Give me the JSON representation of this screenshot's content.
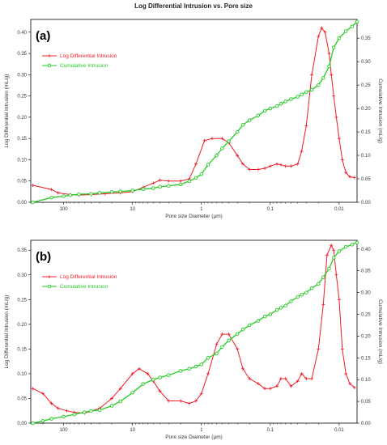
{
  "figure": {
    "title": "Log Differential Intrusion vs. Pore size"
  },
  "colors": {
    "log_differential": "#ee1c25",
    "cumulative": "#22cc22"
  },
  "chart_data": [
    {
      "type": "line",
      "panel_label": "(a)",
      "xlabel": "Pore size Diameter (µm)",
      "ylabel": "Log Differential Intrusion (mL/g)",
      "y2label": "Cumulative Intrusion (mL/g)",
      "x_scale": "log-reversed",
      "xlim": [
        300,
        0.0055
      ],
      "x_ticks": [
        100,
        10,
        1,
        0.1,
        0.01
      ],
      "x_tick_labels": [
        "100",
        "10",
        "1",
        "0.1",
        "0.01"
      ],
      "ylim": [
        0,
        0.43
      ],
      "y_ticks": [
        0,
        0.05,
        0.1,
        0.15,
        0.2,
        0.25,
        0.3,
        0.35,
        0.4
      ],
      "y_tick_labels": [
        "0.00",
        "0.05",
        "0.10",
        "0.15",
        "0.20",
        "0.25",
        "0.30",
        "0.35",
        "0.40"
      ],
      "y2lim": [
        0,
        0.39
      ],
      "y2_ticks": [
        0,
        0.05,
        0.1,
        0.15,
        0.2,
        0.25,
        0.3,
        0.35
      ],
      "y2_tick_labels": [
        "0.00",
        "0.05",
        "0.10",
        "0.15",
        "0.20",
        "0.25",
        "0.30",
        "0.35"
      ],
      "legend_position": "top-left",
      "series": [
        {
          "name": "Log Differential Intrusion",
          "axis": "left",
          "marker": "plus",
          "x": [
            280,
            150,
            120,
            80,
            60,
            40,
            25,
            15,
            10,
            7,
            5,
            4,
            3,
            2,
            1.5,
            1.2,
            0.9,
            0.7,
            0.5,
            0.4,
            0.3,
            0.25,
            0.2,
            0.15,
            0.12,
            0.1,
            0.08,
            0.07,
            0.06,
            0.05,
            0.04,
            0.035,
            0.03,
            0.025,
            0.02,
            0.018,
            0.016,
            0.014,
            0.013,
            0.012,
            0.011,
            0.01,
            0.009,
            0.008,
            0.007,
            0.006
          ],
          "y": [
            0.04,
            0.03,
            0.022,
            0.018,
            0.017,
            0.018,
            0.02,
            0.022,
            0.025,
            0.035,
            0.045,
            0.052,
            0.05,
            0.05,
            0.055,
            0.09,
            0.145,
            0.15,
            0.15,
            0.14,
            0.11,
            0.09,
            0.077,
            0.077,
            0.08,
            0.085,
            0.09,
            0.088,
            0.085,
            0.085,
            0.09,
            0.12,
            0.18,
            0.3,
            0.39,
            0.41,
            0.4,
            0.35,
            0.3,
            0.25,
            0.2,
            0.15,
            0.1,
            0.07,
            0.06,
            0.058
          ]
        },
        {
          "name": "Cumulative Intrusion",
          "axis": "right",
          "marker": "circle",
          "x": [
            280,
            150,
            100,
            80,
            60,
            40,
            30,
            20,
            15,
            10,
            7,
            5,
            4,
            3,
            2,
            1.5,
            1.2,
            1.0,
            0.8,
            0.6,
            0.5,
            0.4,
            0.3,
            0.25,
            0.2,
            0.15,
            0.12,
            0.1,
            0.08,
            0.07,
            0.06,
            0.05,
            0.04,
            0.035,
            0.03,
            0.025,
            0.02,
            0.017,
            0.014,
            0.012,
            0.01,
            0.008,
            0.0065,
            0.0055
          ],
          "y": [
            0.0,
            0.01,
            0.013,
            0.015,
            0.017,
            0.018,
            0.02,
            0.022,
            0.023,
            0.025,
            0.028,
            0.03,
            0.033,
            0.035,
            0.038,
            0.045,
            0.052,
            0.06,
            0.08,
            0.1,
            0.115,
            0.13,
            0.15,
            0.165,
            0.175,
            0.185,
            0.195,
            0.2,
            0.205,
            0.21,
            0.215,
            0.22,
            0.225,
            0.23,
            0.235,
            0.24,
            0.25,
            0.265,
            0.29,
            0.33,
            0.35,
            0.365,
            0.375,
            0.385
          ]
        }
      ]
    },
    {
      "type": "line",
      "panel_label": "(b)",
      "xlabel": "Pore size Diameter (µm)",
      "ylabel": "Log Differential Intrusion (mL/g)",
      "y2label": "Cumulative Intrusion (mL/g)",
      "x_scale": "log-reversed",
      "xlim": [
        300,
        0.0055
      ],
      "x_ticks": [
        100,
        10,
        1,
        0.1,
        0.01
      ],
      "x_tick_labels": [
        "100",
        "10",
        "1",
        "0.1",
        "0.01"
      ],
      "ylim": [
        0,
        0.37
      ],
      "y_ticks": [
        0,
        0.05,
        0.1,
        0.15,
        0.2,
        0.25,
        0.3,
        0.35
      ],
      "y_tick_labels": [
        "0.00",
        "0.05",
        "0.10",
        "0.15",
        "0.20",
        "0.25",
        "0.30",
        "0.35"
      ],
      "y2lim": [
        0,
        0.42
      ],
      "y2_ticks": [
        0,
        0.05,
        0.1,
        0.15,
        0.2,
        0.25,
        0.3,
        0.35,
        0.4
      ],
      "y2_tick_labels": [
        "0.00",
        "0.05",
        "0.10",
        "0.15",
        "0.20",
        "0.25",
        "0.30",
        "0.35",
        "0.40"
      ],
      "legend_position": "top-left",
      "series": [
        {
          "name": "Log Differential Intrusion",
          "axis": "left",
          "marker": "plus",
          "x": [
            280,
            200,
            150,
            120,
            90,
            70,
            50,
            30,
            20,
            15,
            10,
            8,
            6,
            5,
            4,
            3,
            2,
            1.5,
            1.2,
            1.0,
            0.8,
            0.6,
            0.5,
            0.4,
            0.3,
            0.25,
            0.2,
            0.15,
            0.12,
            0.1,
            0.08,
            0.07,
            0.06,
            0.05,
            0.04,
            0.035,
            0.03,
            0.025,
            0.02,
            0.017,
            0.015,
            0.013,
            0.012,
            0.011,
            0.01,
            0.009,
            0.008,
            0.007,
            0.006
          ],
          "y": [
            0.07,
            0.06,
            0.04,
            0.03,
            0.025,
            0.022,
            0.02,
            0.03,
            0.05,
            0.07,
            0.1,
            0.11,
            0.1,
            0.085,
            0.065,
            0.045,
            0.045,
            0.04,
            0.045,
            0.06,
            0.1,
            0.16,
            0.18,
            0.18,
            0.15,
            0.11,
            0.09,
            0.08,
            0.07,
            0.07,
            0.075,
            0.09,
            0.09,
            0.075,
            0.085,
            0.1,
            0.09,
            0.09,
            0.15,
            0.24,
            0.34,
            0.36,
            0.35,
            0.3,
            0.25,
            0.15,
            0.1,
            0.08,
            0.072
          ]
        },
        {
          "name": "Cumulative Intrusion",
          "axis": "right",
          "marker": "circle",
          "x": [
            280,
            200,
            150,
            100,
            70,
            50,
            40,
            30,
            20,
            15,
            10,
            7,
            5,
            4,
            3,
            2,
            1.5,
            1.2,
            1.0,
            0.8,
            0.6,
            0.5,
            0.4,
            0.3,
            0.25,
            0.2,
            0.15,
            0.12,
            0.1,
            0.08,
            0.07,
            0.06,
            0.05,
            0.04,
            0.035,
            0.03,
            0.025,
            0.02,
            0.017,
            0.014,
            0.012,
            0.01,
            0.008,
            0.0065,
            0.0055
          ],
          "y": [
            0.0,
            0.005,
            0.01,
            0.015,
            0.02,
            0.025,
            0.028,
            0.03,
            0.04,
            0.05,
            0.07,
            0.09,
            0.1,
            0.105,
            0.11,
            0.12,
            0.125,
            0.13,
            0.135,
            0.15,
            0.16,
            0.175,
            0.19,
            0.205,
            0.215,
            0.225,
            0.235,
            0.245,
            0.25,
            0.26,
            0.265,
            0.27,
            0.28,
            0.29,
            0.295,
            0.3,
            0.31,
            0.32,
            0.335,
            0.355,
            0.38,
            0.395,
            0.405,
            0.41,
            0.415
          ]
        }
      ]
    }
  ]
}
